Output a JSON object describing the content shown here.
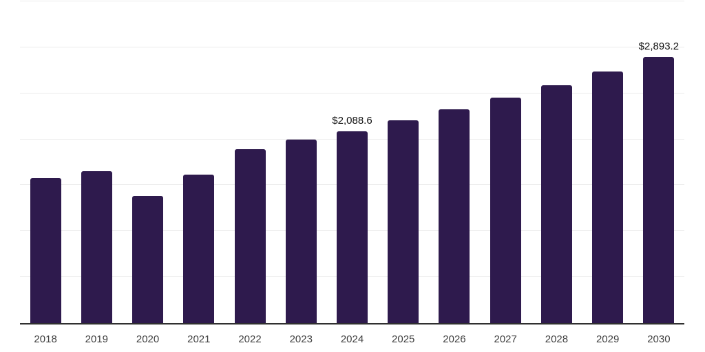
{
  "chart": {
    "background_color": "#ffffff",
    "bar_color": "#2e1a4d",
    "gridline_color": "#ebebeb",
    "axis_line_color": "#303030",
    "tick_label_color": "#3f3f3f",
    "value_label_color": "#111111"
  },
  "chart_data": {
    "type": "bar",
    "title": "",
    "xlabel": "",
    "ylabel": "",
    "categories": [
      "2018",
      "2019",
      "2020",
      "2021",
      "2022",
      "2023",
      "2024",
      "2025",
      "2026",
      "2027",
      "2028",
      "2029",
      "2030"
    ],
    "values": [
      1575,
      1650,
      1385,
      1615,
      1890,
      1995,
      2088.6,
      2210,
      2325,
      2450,
      2590,
      2740,
      2893.2
    ],
    "data_labels": {
      "2024": "$2,088.6",
      "2030": "$2,893.2"
    },
    "ylim": [
      0,
      3500
    ],
    "gridline_step": 500,
    "grid": true,
    "legend": false
  }
}
